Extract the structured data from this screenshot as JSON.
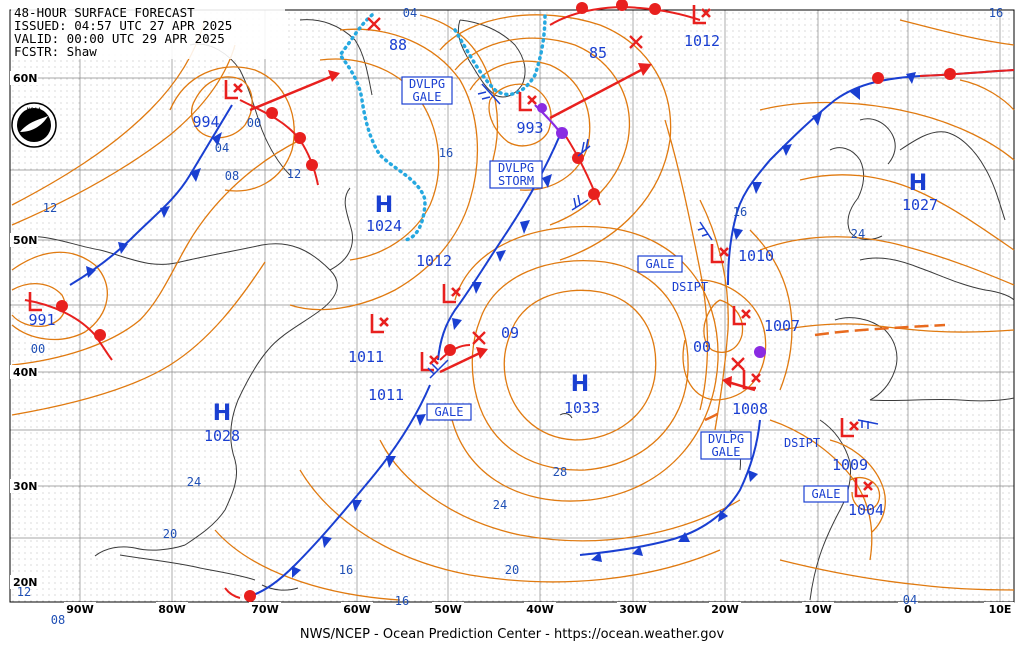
{
  "header": {
    "line1": "48-HOUR SURFACE FORECAST",
    "line2": "ISSUED: 04:57 UTC 27 APR 2025",
    "line3": "VALID:  00:00 UTC 29 APR 2025",
    "line4": "FCSTR:  Shaw"
  },
  "credit": "NWS/NCEP - Ocean Prediction Center - https://ocean.weather.gov",
  "logo": {
    "icon": "noaa-logo-icon",
    "text": "NOAA"
  },
  "lon_labels": [
    "90W",
    "80W",
    "70W",
    "60W",
    "50W",
    "40W",
    "30W",
    "20W",
    "10W",
    "0",
    "10E"
  ],
  "lat_labels": [
    "60N",
    "50N",
    "40N",
    "30N",
    "20N"
  ],
  "highs": [
    {
      "letter": "H",
      "value": "1024"
    },
    {
      "letter": "H",
      "value": "1028"
    },
    {
      "letter": "H",
      "value": "1033"
    },
    {
      "letter": "H",
      "value": "1027"
    }
  ],
  "lows": [
    {
      "value": "994"
    },
    {
      "value": "991"
    },
    {
      "value": "993"
    },
    {
      "value": "1012"
    },
    {
      "value": "1011"
    },
    {
      "value": "1011"
    },
    {
      "value": "1010"
    },
    {
      "value": "1007"
    },
    {
      "value": "1008"
    },
    {
      "value": "1009"
    },
    {
      "value": "1004"
    },
    {
      "value": "88"
    },
    {
      "value": "85"
    }
  ],
  "isobar_labels": [
    "04",
    "00",
    "04",
    "08",
    "12",
    "12",
    "16",
    "1012",
    "09",
    "00",
    "16",
    "24",
    "28",
    "24",
    "20",
    "16",
    "16",
    "20",
    "24",
    "12",
    "08",
    "04",
    "16",
    "00"
  ],
  "tags": {
    "dvlpg_gale_1": [
      "DVLPG",
      "GALE"
    ],
    "dvlpg_storm": [
      "DVLPG",
      "STORM"
    ],
    "gale_1": "GALE",
    "gale_2": "GALE",
    "gale_3": "GALE",
    "dvlpg_gale_2": [
      "DVLPG",
      "GALE"
    ],
    "dsipt_1": "DSIPT",
    "dsipt_2": "DSIPT"
  },
  "colors": {
    "isobar": "#e07a10",
    "cold_front": "#1a3fd1",
    "warm_front": "#e8201e",
    "occluded": "#8a2be2",
    "ice_edge": "#25a8e0",
    "label": "#1a3fd1",
    "grid": "#7f7f7f",
    "land": "#333333"
  }
}
